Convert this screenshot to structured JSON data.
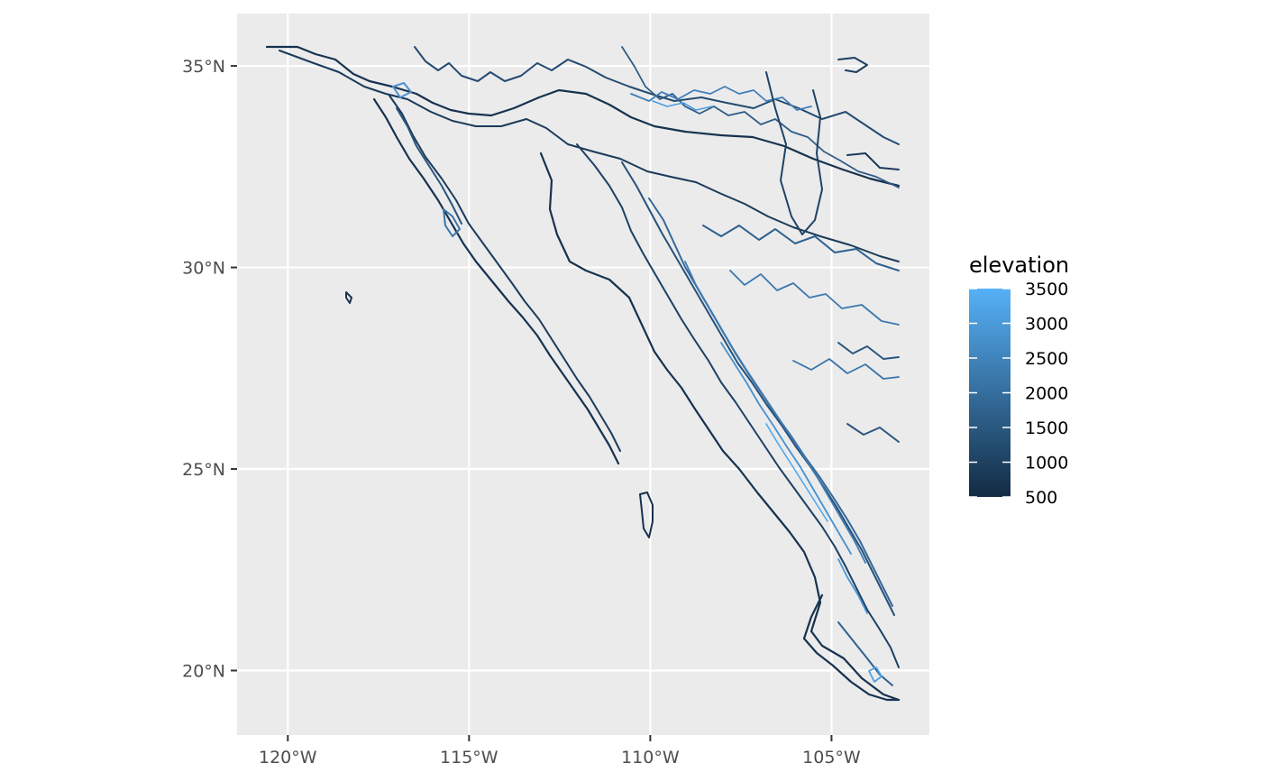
{
  "chart_data": {
    "type": "contour map",
    "title": "",
    "xlabel": "",
    "ylabel": "",
    "x_range": [
      -121.4,
      -102.3
    ],
    "y_range": [
      18.4,
      36.3
    ],
    "grid": true,
    "x_ticks": [
      {
        "value": -120,
        "label": "120°W"
      },
      {
        "value": -115,
        "label": "115°W"
      },
      {
        "value": -110,
        "label": "110°W"
      },
      {
        "value": -105,
        "label": "105°W"
      }
    ],
    "y_ticks": [
      {
        "value": 35,
        "label": "35°N"
      },
      {
        "value": 30,
        "label": "30°N"
      },
      {
        "value": 25,
        "label": "25°N"
      },
      {
        "value": 20,
        "label": "20°N"
      }
    ],
    "legend": {
      "title": "elevation",
      "position": "right",
      "min": 500,
      "max": 3500,
      "color_low": "#132b43",
      "color_high": "#56b1f7",
      "breaks": [
        "3500",
        "3000",
        "2500",
        "2000",
        "1500",
        "1000",
        "500"
      ]
    },
    "colors": {
      "panel_background": "#ebebeb",
      "grid": "#ffffff"
    }
  }
}
